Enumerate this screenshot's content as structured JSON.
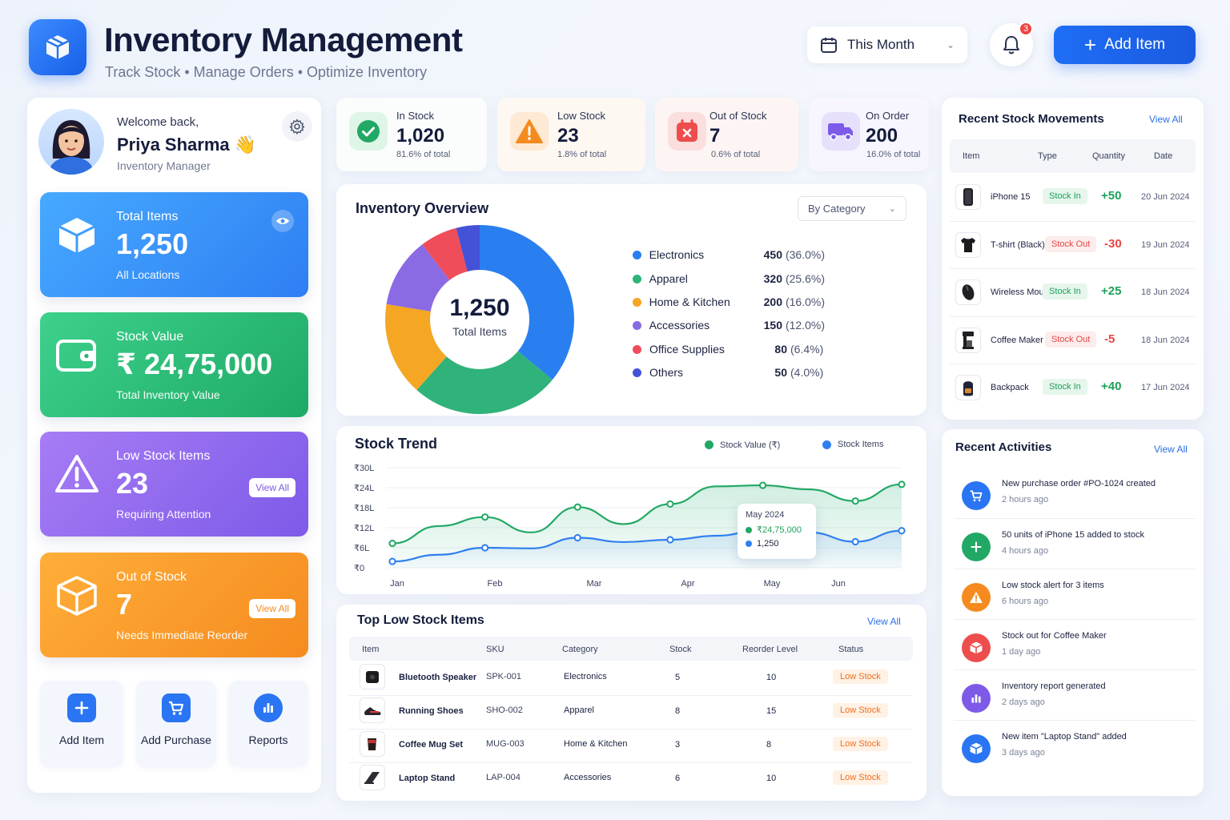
{
  "header": {
    "title": "Inventory Management",
    "subtitle": "Track Stock  •  Manage Orders  •  Optimize Inventory",
    "period": "This Month",
    "notification_count": "3",
    "add_item_label": "Add Item"
  },
  "user": {
    "welcome": "Welcome back,",
    "name": "Priya Sharma 👋",
    "role": "Inventory Manager"
  },
  "summary_cards": {
    "total_items": {
      "label": "Total Items",
      "value": "1,250",
      "sub": "All Locations"
    },
    "stock_value": {
      "label": "Stock Value",
      "value": "₹ 24,75,000",
      "sub": "Total Inventory Value"
    },
    "low_stock": {
      "label": "Low Stock Items",
      "value": "23",
      "sub": "Requiring Attention",
      "action": "View All"
    },
    "out_of_stock": {
      "label": "Out of Stock",
      "value": "7",
      "sub": "Needs Immediate Reorder",
      "action": "View All"
    }
  },
  "quick_actions": [
    {
      "label": "Add Item"
    },
    {
      "label": "Add Purchase"
    },
    {
      "label": "Reports"
    }
  ],
  "kpis": [
    {
      "label": "In Stock",
      "value": "1,020",
      "sub": "81.6% of total"
    },
    {
      "label": "Low Stock",
      "value": "23",
      "sub": "1.8% of total"
    },
    {
      "label": "Out of Stock",
      "value": "7",
      "sub": "0.6% of total"
    },
    {
      "label": "On Order",
      "value": "200",
      "sub": "16.0% of total"
    }
  ],
  "overview": {
    "title": "Inventory Overview",
    "filter": "By Category",
    "center_value": "1,250",
    "center_label": "Total Items",
    "colors": [
      "#2a7ff0",
      "#2fb37a",
      "#f5a623",
      "#8a6be3",
      "#f04d5a",
      "#4452d8"
    ],
    "legend": [
      {
        "name": "Electronics",
        "value": "450",
        "pct": "(36.0%)"
      },
      {
        "name": "Apparel",
        "value": "320",
        "pct": "(25.6%)"
      },
      {
        "name": "Home & Kitchen",
        "value": "200",
        "pct": "(16.0%)"
      },
      {
        "name": "Accessories",
        "value": "150",
        "pct": "(12.0%)"
      },
      {
        "name": "Office Supplies",
        "value": "80",
        "pct": "(6.4%)"
      },
      {
        "name": "Others",
        "value": "50",
        "pct": "(4.0%)"
      }
    ]
  },
  "chart_data": [
    {
      "type": "pie",
      "categories": [
        "Electronics",
        "Apparel",
        "Home & Kitchen",
        "Accessories",
        "Office Supplies",
        "Others"
      ],
      "values": [
        450,
        320,
        200,
        150,
        80,
        50
      ],
      "title": "Inventory Overview"
    },
    {
      "type": "line",
      "title": "Stock Trend",
      "x": [
        "Jan",
        "",
        "Feb",
        "",
        "Mar",
        "",
        "Apr",
        "",
        "May",
        "",
        "Jun",
        ""
      ],
      "x_ticks": [
        "Jan",
        "Feb",
        "Mar",
        "Apr",
        "May",
        "Jun"
      ],
      "y_ticks": [
        "₹30L",
        "₹24L",
        "₹18L",
        "₹12L",
        "₹6L",
        "₹0"
      ],
      "ylim": [
        0,
        30
      ],
      "series": [
        {
          "name": "Stock Value (₹)",
          "color": "#22a865",
          "values": [
            7.3,
            12.5,
            15.2,
            10.6,
            18.2,
            13.1,
            19.1,
            24.4,
            24.7,
            23.5,
            20.0,
            25.0
          ]
        },
        {
          "name": "Stock Items",
          "color": "#2f7ff0",
          "values": [
            1.9,
            3.9,
            6.0,
            5.8,
            9.0,
            7.7,
            8.4,
            9.6,
            11.4,
            10.6,
            7.8,
            11.1
          ]
        }
      ],
      "legend": "top-right"
    }
  ],
  "trend": {
    "title": "Stock Trend",
    "legend_value": "Stock Value (₹)",
    "legend_items": "Stock Items",
    "tooltip_title": "May 2024",
    "tooltip_value": "₹24,75,000",
    "tooltip_items": "1,250"
  },
  "low_stock_table": {
    "title": "Top Low Stock Items",
    "view_all": "View All",
    "headers": [
      "Item",
      "SKU",
      "Category",
      "Stock",
      "Reorder Level",
      "Status"
    ],
    "rows": [
      {
        "item": "Bluetooth Speaker",
        "sku": "SPK-001",
        "category": "Electronics",
        "stock": "5",
        "reorder": "10",
        "status": "Low Stock"
      },
      {
        "item": "Running Shoes",
        "sku": "SHO-002",
        "category": "Apparel",
        "stock": "8",
        "reorder": "15",
        "status": "Low Stock"
      },
      {
        "item": "Coffee Mug Set",
        "sku": "MUG-003",
        "category": "Home & Kitchen",
        "stock": "3",
        "reorder": "8",
        "status": "Low Stock"
      },
      {
        "item": "Laptop Stand",
        "sku": "LAP-004",
        "category": "Accessories",
        "stock": "6",
        "reorder": "10",
        "status": "Low Stock"
      }
    ]
  },
  "movements": {
    "title": "Recent Stock Movements",
    "view_all": "View All",
    "headers": [
      "Item",
      "Type",
      "Quantity",
      "Date"
    ],
    "rows": [
      {
        "item": "iPhone 15",
        "type": "Stock In",
        "qty": "+50",
        "date": "20 Jun 2024"
      },
      {
        "item": "T-shirt (Black)",
        "type": "Stock Out",
        "qty": "-30",
        "date": "19 Jun 2024"
      },
      {
        "item": "Wireless Mouse",
        "type": "Stock In",
        "qty": "+25",
        "date": "18 Jun 2024"
      },
      {
        "item": "Coffee Maker",
        "type": "Stock Out",
        "qty": "-5",
        "date": "18 Jun 2024"
      },
      {
        "item": "Backpack",
        "type": "Stock In",
        "qty": "+40",
        "date": "17 Jun 2024"
      }
    ]
  },
  "activities": {
    "title": "Recent Activities",
    "view_all": "View All",
    "items": [
      {
        "title": "New purchase order #PO-1024 created",
        "time": "2 hours ago"
      },
      {
        "title": "50 units of iPhone 15 added to stock",
        "time": "4 hours ago"
      },
      {
        "title": "Low stock alert for 3 items",
        "time": "6 hours ago"
      },
      {
        "title": "Stock out for Coffee Maker",
        "time": "1 day ago"
      },
      {
        "title": "Inventory report generated",
        "time": "2 days ago"
      },
      {
        "title": "New item \"Laptop Stand\" added",
        "time": "3 days ago"
      }
    ]
  }
}
